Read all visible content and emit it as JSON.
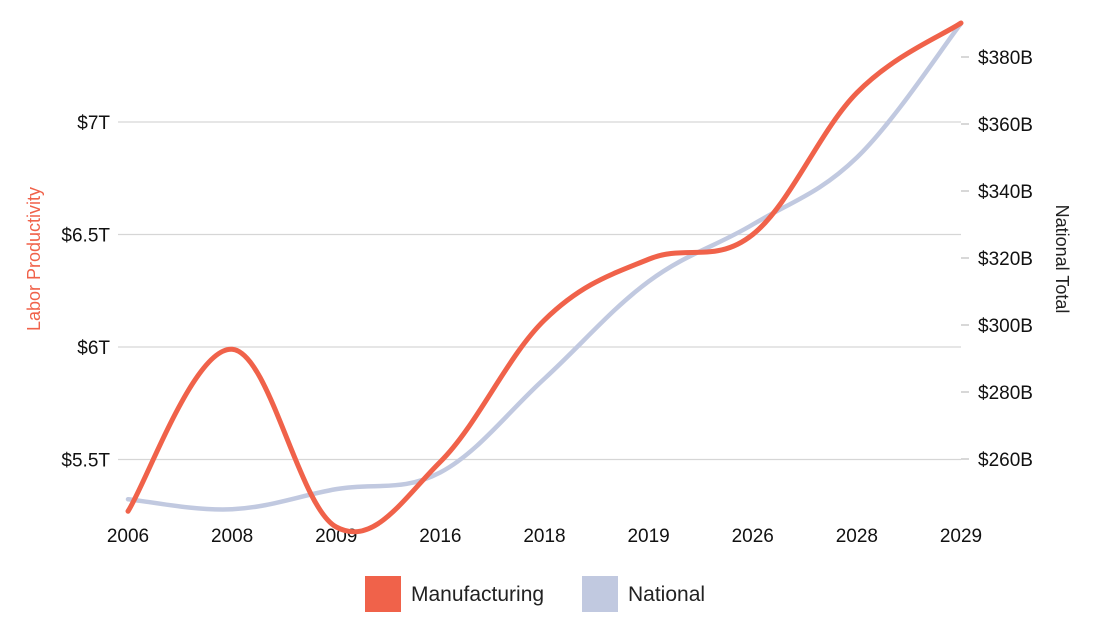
{
  "chart_data": {
    "type": "line",
    "categories": [
      "2006",
      "2008",
      "2009",
      "2016",
      "2018",
      "2019",
      "2026",
      "2028",
      "2029"
    ],
    "series": [
      {
        "name": "Manufacturing",
        "axis": "left",
        "color": "#f0624a",
        "values": [
          5.27,
          5.99,
          5.2,
          5.49,
          6.12,
          6.39,
          6.5,
          7.13,
          7.44
        ]
      },
      {
        "name": "National",
        "axis": "right",
        "color": "#c1c9e0",
        "values": [
          248,
          245,
          251,
          256,
          284,
          313,
          330,
          350,
          390
        ]
      }
    ],
    "left_axis": {
      "title": "Labor Productivity",
      "title_color": "#f0624a",
      "ticks": [
        5.5,
        6,
        6.5,
        7
      ],
      "tick_labels": [
        "$5.5T",
        "$6T",
        "$6.5T",
        "$7T"
      ],
      "range": [
        5.21,
        7.5
      ]
    },
    "right_axis": {
      "title": "National Total",
      "title_color": "#222222",
      "ticks": [
        260,
        280,
        300,
        320,
        340,
        360,
        380
      ],
      "tick_labels": [
        "$260B",
        "$280B",
        "$300B",
        "$320B",
        "$340B",
        "$360B",
        "$380B"
      ],
      "range": [
        245,
        390
      ]
    },
    "grid": true,
    "legend_position": "bottom"
  }
}
